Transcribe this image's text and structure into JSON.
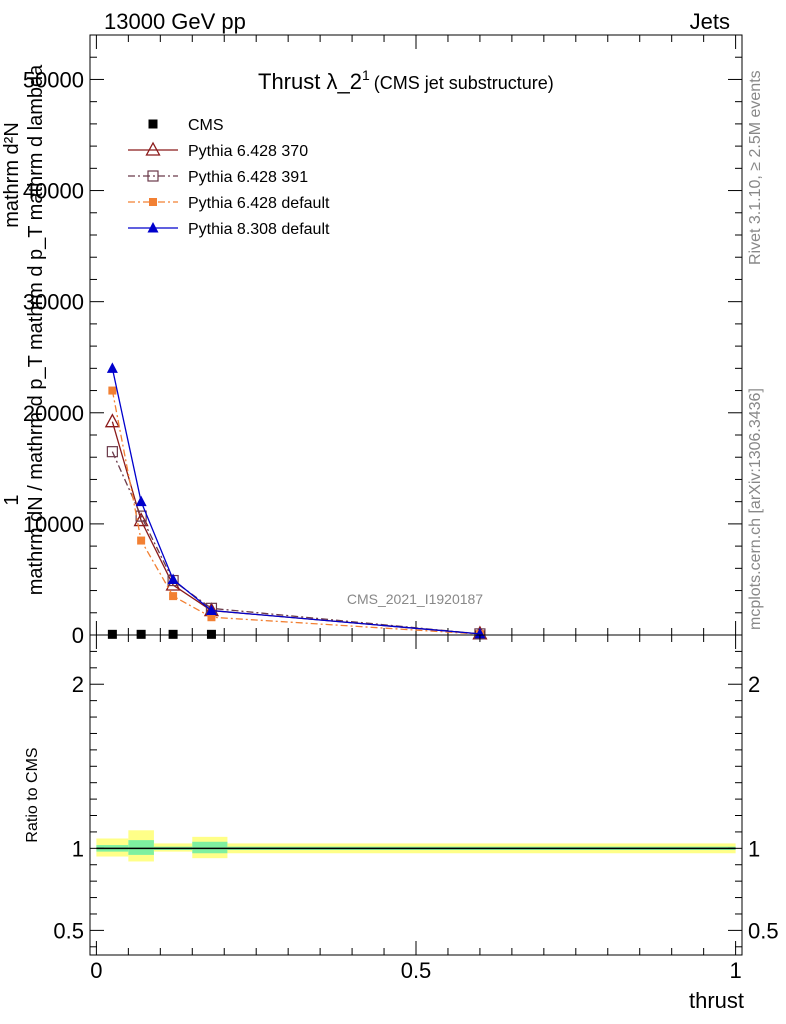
{
  "header": {
    "left": "13000 GeV pp",
    "right": "Jets"
  },
  "side": {
    "rivet": "Rivet 3.1.10, ≥ 2.5M events",
    "mcplots": "mcplots.cern.ch [arXiv:1306.3436]"
  },
  "colors": {
    "cms": "#000000",
    "p370": "#8b1a1a",
    "p391": "#6b3a4a",
    "p6def": "#f28033",
    "p8def": "#0000cc",
    "band_inner": "#7ff0a0",
    "band_outer": "#ffff88"
  },
  "chart_data": [
    {
      "type": "line",
      "title_main": "Thrust λ_2",
      "title_sup": "1",
      "title_sub": "(CMS jet substructure)",
      "xlabel": "thrust",
      "ylabel": "1 / mathrm dN / mathrm d p_T mathrm d p_T mathrm d lambda · mathrm d^2N",
      "ylabel_parts": {
        "num": "1",
        "den": "mathrm dN / mathrm d p_T mathrm d p_T mathrm d lambda",
        "top": "mathrm d²N"
      },
      "watermark": "CMS_2021_I1920187",
      "xlim": [
        -0.01,
        1.01
      ],
      "ylim": [
        0,
        54000
      ],
      "yticks": [
        {
          "v": 0,
          "label": "0"
        },
        {
          "v": 10000,
          "label": "10000"
        },
        {
          "v": 20000,
          "label": "20000"
        },
        {
          "v": 30000,
          "label": "30000"
        },
        {
          "v": 40000,
          "label": "40000"
        },
        {
          "v": 50000,
          "label": "50000"
        }
      ],
      "legend_position": "top-left",
      "series": [
        {
          "name": "CMS",
          "key": "cms",
          "marker": "square-filled",
          "line": "none",
          "x": [
            0.025,
            0.07,
            0.12,
            0.18,
            0.6
          ],
          "y": [
            60,
            60,
            60,
            60,
            10
          ]
        },
        {
          "name": "Pythia 6.428 370",
          "key": "p370",
          "marker": "triangle-open",
          "line": "solid",
          "x": [
            0.025,
            0.07,
            0.12,
            0.18,
            0.6
          ],
          "y": [
            19200,
            10300,
            4500,
            2200,
            100
          ]
        },
        {
          "name": "Pythia 6.428 391",
          "key": "p391",
          "marker": "square-open",
          "line": "dashdot",
          "x": [
            0.025,
            0.07,
            0.12,
            0.18,
            0.6
          ],
          "y": [
            16500,
            10700,
            4900,
            2400,
            100
          ]
        },
        {
          "name": "Pythia 6.428 default",
          "key": "p6def",
          "marker": "square-filled-small",
          "line": "dashdot",
          "x": [
            0.025,
            0.07,
            0.12,
            0.18,
            0.6
          ],
          "y": [
            22000,
            8500,
            3500,
            1600,
            80
          ]
        },
        {
          "name": "Pythia 8.308 default",
          "key": "p8def",
          "marker": "triangle-filled",
          "line": "solid",
          "x": [
            0.025,
            0.07,
            0.12,
            0.18,
            0.6
          ],
          "y": [
            24000,
            12000,
            5000,
            2200,
            100
          ]
        }
      ]
    },
    {
      "type": "line",
      "ylabel": "Ratio to CMS",
      "xlabel": "thrust",
      "xlim": [
        -0.01,
        1.01
      ],
      "ylim": [
        0.35,
        2.3
      ],
      "yticks": [
        {
          "v": 0.5,
          "label": "0.5"
        },
        {
          "v": 1,
          "label": "1"
        },
        {
          "v": 2,
          "label": "2"
        }
      ],
      "xticks": [
        {
          "v": 0,
          "label": "0"
        },
        {
          "v": 0.5,
          "label": "0.5"
        },
        {
          "v": 1,
          "label": "1"
        }
      ],
      "reference": 1,
      "bands": [
        {
          "x0": 0.0,
          "x1": 0.05,
          "inner": [
            0.98,
            1.02
          ],
          "outer": [
            0.95,
            1.06
          ]
        },
        {
          "x0": 0.05,
          "x1": 0.09,
          "inner": [
            0.96,
            1.05
          ],
          "outer": [
            0.92,
            1.11
          ]
        },
        {
          "x0": 0.09,
          "x1": 0.15,
          "inner": [
            0.99,
            1.01
          ],
          "outer": [
            0.98,
            1.03
          ]
        },
        {
          "x0": 0.15,
          "x1": 0.205,
          "inner": [
            0.97,
            1.04
          ],
          "outer": [
            0.94,
            1.07
          ]
        },
        {
          "x0": 0.205,
          "x1": 1.0,
          "inner": [
            0.99,
            1.01
          ],
          "outer": [
            0.97,
            1.03
          ]
        }
      ]
    }
  ]
}
